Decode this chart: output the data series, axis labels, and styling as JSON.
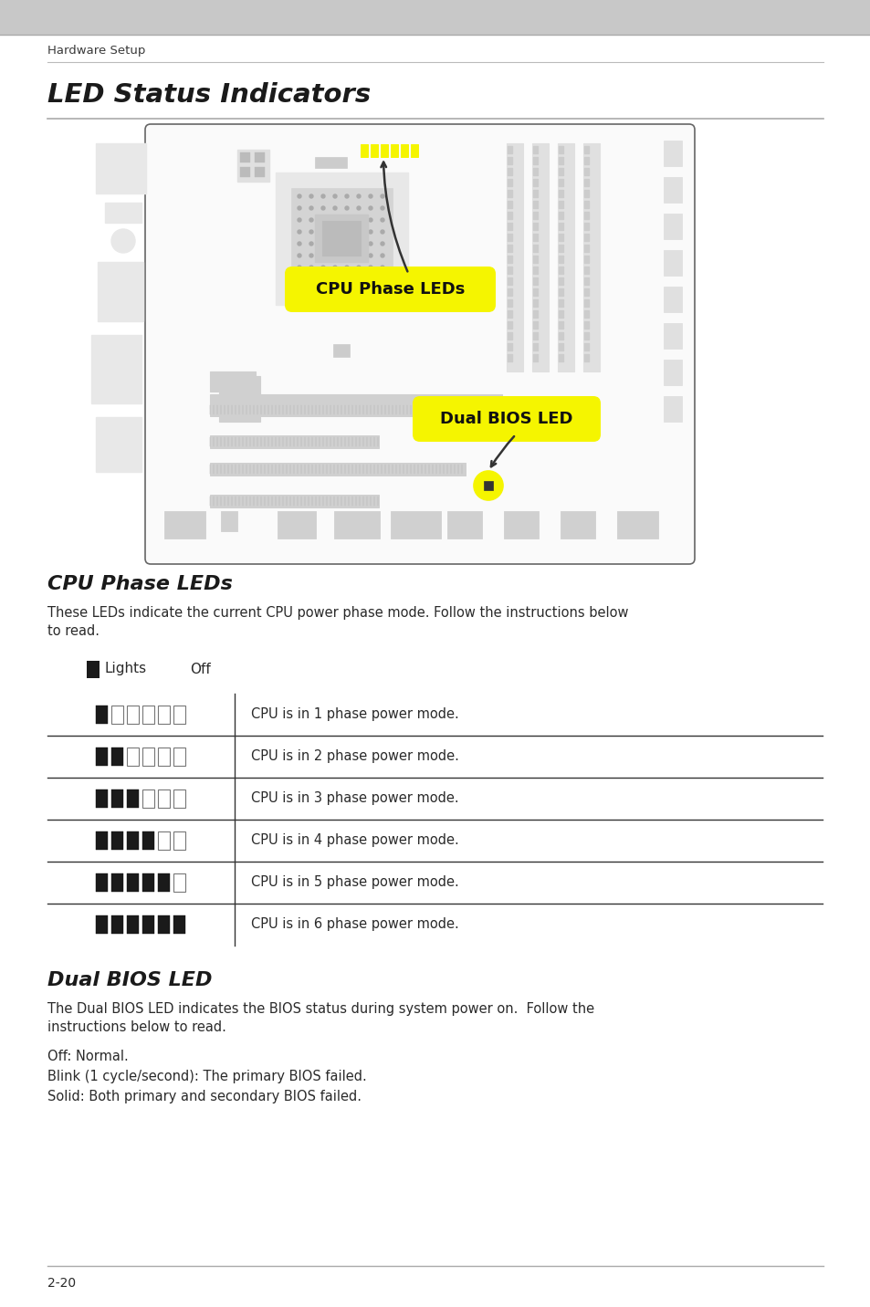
{
  "page_title": "Hardware Setup",
  "section_title": "LED Status Indicators",
  "subsection1_title": "CPU Phase LEDs",
  "subsection1_body1": "These LEDs indicate the current CPU power phase mode. Follow the instructions below",
  "subsection1_body2": "to read.",
  "legend_lights": "Lights",
  "legend_off": "Off",
  "table_rows": [
    {
      "phases": 1,
      "desc": "CPU is in 1 phase power mode."
    },
    {
      "phases": 2,
      "desc": "CPU is in 2 phase power mode."
    },
    {
      "phases": 3,
      "desc": "CPU is in 3 phase power mode."
    },
    {
      "phases": 4,
      "desc": "CPU is in 4 phase power mode."
    },
    {
      "phases": 5,
      "desc": "CPU is in 5 phase power mode."
    },
    {
      "phases": 6,
      "desc": "CPU is in 6 phase power mode."
    }
  ],
  "total_leds": 6,
  "subsection2_title": "Dual BIOS LED",
  "subsection2_body1": "The Dual BIOS LED indicates the BIOS status during system power on.  Follow the",
  "subsection2_body2": "instructions below to read.",
  "subsection2_body3": "Off: Normal.",
  "subsection2_body4": "Blink (1 cycle/second): The primary BIOS failed.",
  "subsection2_body5": "Solid: Both primary and secondary BIOS failed.",
  "page_number": "2-20",
  "bg_color": "#ffffff",
  "page_bg": "#f0f0f0",
  "text_color": "#2d2d2d",
  "led_on_color": "#1a1a1a",
  "led_off_color": "#ffffff",
  "label_cpu": "CPU Phase LEDs",
  "label_dual": "Dual BIOS LED",
  "label_bg": "#f5f500",
  "board_border": "#555555",
  "board_bg": "#ffffff",
  "component_color": "#cccccc",
  "component_edge": "#888888"
}
